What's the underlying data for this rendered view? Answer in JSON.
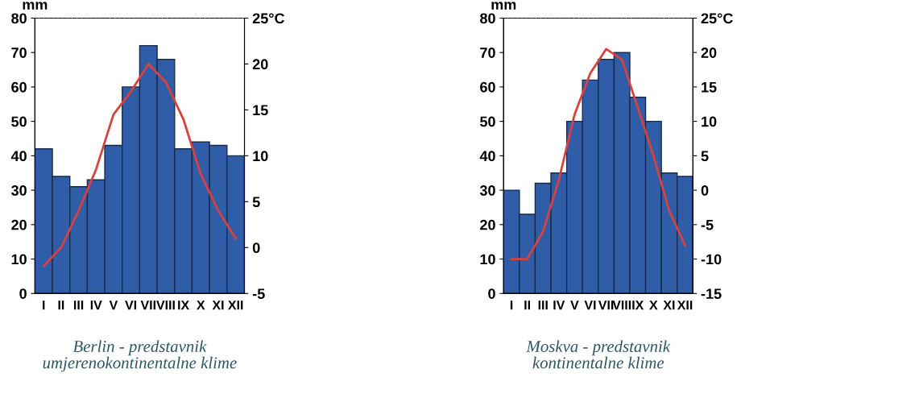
{
  "chart_data": [
    {
      "type": "bar",
      "title": "Berlin - predstavnik\numjerenokontinentalne klime",
      "ylabel": "mm",
      "categories": [
        "I",
        "II",
        "III",
        "IV",
        "V",
        "VI",
        "VII",
        "VIII",
        "IX",
        "X",
        "XI",
        "XII"
      ],
      "series": [
        {
          "color": "#2f5da8",
          "values": [
            42,
            34,
            31,
            33,
            43,
            60,
            72,
            68,
            42,
            44,
            43,
            40
          ]
        },
        {
          "type": "line",
          "axis": "y2",
          "color": "#d9413f",
          "values": [
            -2,
            0,
            4,
            8.5,
            14.5,
            17,
            20,
            18,
            14,
            8,
            4,
            1
          ]
        }
      ],
      "ylim": [
        0,
        80
      ],
      "yticks": [
        0,
        10,
        20,
        30,
        40,
        50,
        60,
        70,
        80
      ],
      "y2lim": [
        -5,
        25
      ],
      "y2ticks": [
        -5,
        0,
        5,
        10,
        15,
        20,
        {
          "value": 25,
          "label": "25°C"
        }
      ],
      "grid": false,
      "legend": false
    },
    {
      "type": "bar",
      "title": "Moskva - predstavnik\nkontinentalne klime",
      "ylabel": "mm",
      "categories": [
        "I",
        "II",
        "III",
        "IV",
        "V",
        "VI",
        "VII",
        "VIII",
        "IX",
        "X",
        "XI",
        "XII"
      ],
      "series": [
        {
          "color": "#2f5da8",
          "values": [
            30,
            23,
            32,
            35,
            50,
            62,
            68,
            70,
            57,
            50,
            35,
            34
          ]
        },
        {
          "type": "line",
          "axis": "y2",
          "color": "#d9413f",
          "values": [
            -10,
            -10,
            -6,
            1.5,
            11,
            17,
            20.5,
            19,
            12,
            5,
            -3,
            -8
          ]
        }
      ],
      "ylim": [
        0,
        80
      ],
      "yticks": [
        0,
        10,
        20,
        30,
        40,
        50,
        60,
        70,
        80
      ],
      "y2lim": [
        -15,
        25
      ],
      "y2ticks": [
        -15,
        -10,
        -5,
        0,
        5,
        10,
        15,
        20,
        {
          "value": 25,
          "label": "25°C"
        }
      ],
      "grid": false,
      "legend": false
    }
  ]
}
